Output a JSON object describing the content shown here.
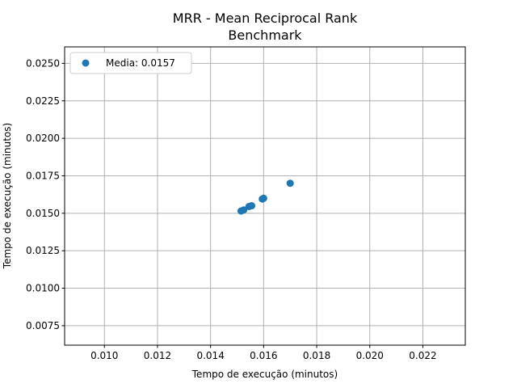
{
  "chart_data": {
    "type": "scatter",
    "title": "MRR - Mean Reciprocal Rank",
    "subtitle": "Benchmark",
    "xlabel": "Tempo de execução (minutos)",
    "ylabel": "Tempo de execução (minutos)",
    "xlim": [
      0.0085,
      0.0236
    ],
    "ylim": [
      0.0062,
      0.0261
    ],
    "xticks": [
      0.01,
      0.012,
      0.014,
      0.016,
      0.018,
      0.02,
      0.022
    ],
    "xtick_labels": [
      "0.010",
      "0.012",
      "0.014",
      "0.016",
      "0.018",
      "0.020",
      "0.022"
    ],
    "yticks": [
      0.0075,
      0.01,
      0.0125,
      0.015,
      0.0175,
      0.02,
      0.0225,
      0.025
    ],
    "ytick_labels": [
      "0.0075",
      "0.0100",
      "0.0125",
      "0.0150",
      "0.0175",
      "0.0200",
      "0.0225",
      "0.0250"
    ],
    "grid": true,
    "legend_position": "top-left",
    "series": [
      {
        "name": "Media: 0.0157",
        "color": "#1f77b4",
        "points": [
          {
            "x": 0.01515,
            "y": 0.01515
          },
          {
            "x": 0.01525,
            "y": 0.01522
          },
          {
            "x": 0.01545,
            "y": 0.01545
          },
          {
            "x": 0.01555,
            "y": 0.0155
          },
          {
            "x": 0.01595,
            "y": 0.01595
          },
          {
            "x": 0.016,
            "y": 0.016
          },
          {
            "x": 0.017,
            "y": 0.017
          }
        ]
      }
    ]
  }
}
